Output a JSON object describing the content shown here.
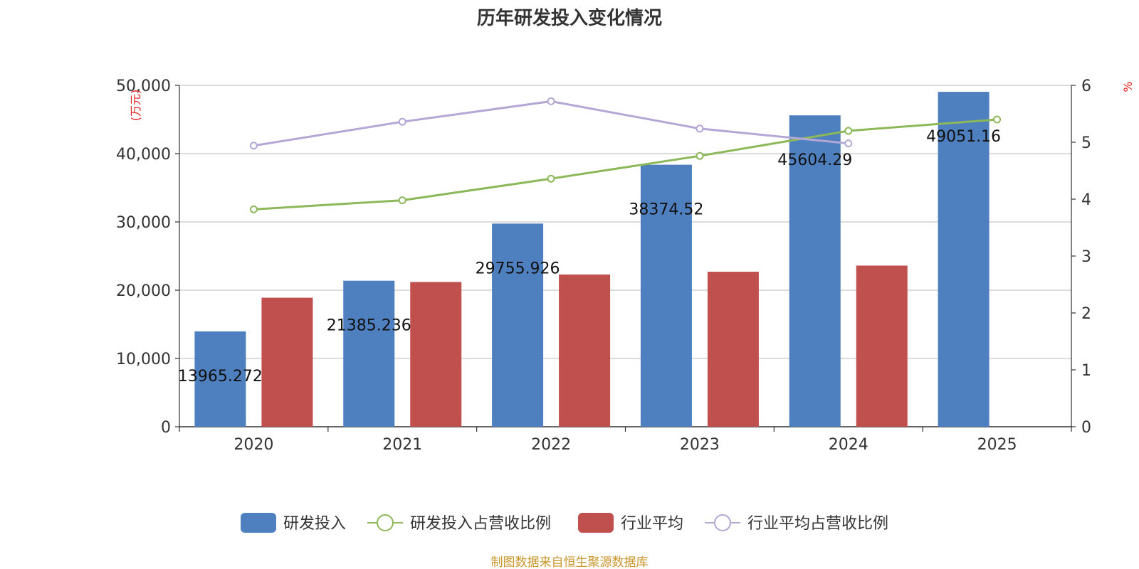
{
  "chart_data": {
    "type": "bar",
    "title": "历年研发投入变化情况",
    "categories": [
      "2020",
      "2021",
      "2022",
      "2023",
      "2024",
      "2025"
    ],
    "y_left": {
      "unit": "(万元)",
      "ylim": [
        0,
        50000
      ],
      "ticks": [
        0,
        10000,
        20000,
        30000,
        40000,
        50000
      ],
      "tick_labels": [
        "0",
        "10,000",
        "20,000",
        "30,000",
        "40,000",
        "50,000"
      ]
    },
    "y_right": {
      "unit": "%",
      "ylim": [
        0,
        6
      ],
      "ticks": [
        0,
        1,
        2,
        3,
        4,
        5,
        6
      ],
      "tick_labels": [
        "0",
        "1",
        "2",
        "3",
        "4",
        "5",
        "6"
      ]
    },
    "series": [
      {
        "name": "研发投入",
        "type": "bar",
        "axis": "left",
        "color": "#4e7fbf",
        "values": [
          13965.272,
          21385.236,
          29755.926,
          38374.52,
          45604.29,
          49051.16
        ],
        "labels": [
          "13965.272",
          "21385.236",
          "29755.926",
          "38374.52",
          "45604.29",
          "49051.16"
        ]
      },
      {
        "name": "研发投入占营收比例",
        "type": "line",
        "axis": "right",
        "color": "#8db85a",
        "values": [
          3.82,
          3.98,
          4.36,
          4.76,
          5.2,
          5.4
        ]
      },
      {
        "name": "行业平均",
        "type": "bar",
        "axis": "left",
        "color": "#c0504d",
        "values": [
          18900,
          21200,
          22300,
          22700,
          23600,
          null
        ]
      },
      {
        "name": "行业平均占营收比例",
        "type": "line",
        "axis": "right",
        "color": "#b4a7d6",
        "values": [
          4.94,
          5.36,
          5.72,
          5.24,
          4.98,
          null
        ]
      }
    ],
    "legend_position": "bottom",
    "grid": true
  },
  "footer": {
    "source": "制图数据来自恒生聚源数据库"
  }
}
